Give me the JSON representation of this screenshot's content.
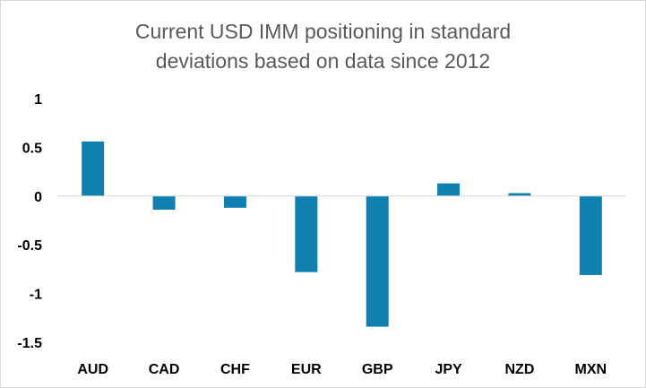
{
  "chart_data": {
    "type": "bar",
    "title_lines": [
      "Current USD IMM positioning in standard",
      "deviations based on data since 2012"
    ],
    "xlabel": "",
    "ylabel": "",
    "categories": [
      "AUD",
      "CAD",
      "CHF",
      "EUR",
      "GBP",
      "JPY",
      "NZD",
      "MXN"
    ],
    "series": [
      {
        "values": [
          0.56,
          -0.14,
          -0.12,
          -0.78,
          -1.34,
          0.13,
          0.03,
          -0.81
        ]
      }
    ],
    "ylim": [
      -1.5,
      1
    ],
    "yticks": [
      1,
      0.5,
      0,
      -0.5,
      -1,
      -1.5
    ],
    "ytick_labels": [
      "1",
      "0.5",
      "0",
      "-0.5",
      "-1",
      "-1.5"
    ],
    "grid": false,
    "legend": "none",
    "colors": {
      "bar": "#0f80b0",
      "axis": "#d9d9d9",
      "text": "#000000",
      "title": "#595959"
    }
  }
}
